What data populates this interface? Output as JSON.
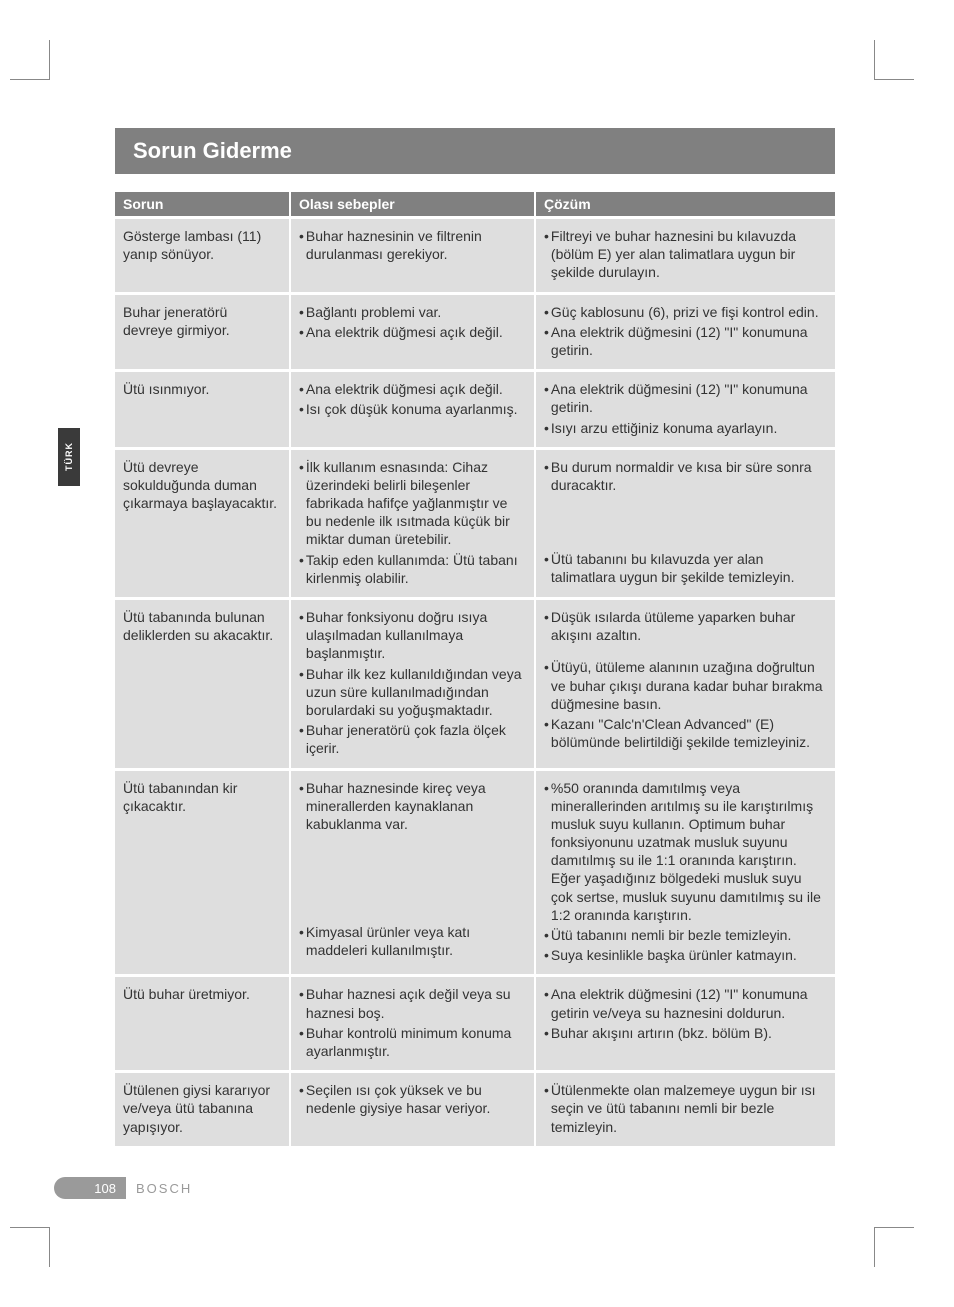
{
  "language_tab": "TÜRK",
  "section_title": "Sorun Giderme",
  "columns": {
    "problem": "Sorun",
    "cause": "Olası sebepler",
    "solution": "Çözüm"
  },
  "rows": [
    {
      "problem": "Gösterge lambası (11) yanıp sönüyor.",
      "causes": [
        "Buhar haznesinin ve filtrenin durulanması gerekiyor."
      ],
      "solutions": [
        "Filtreyi ve buhar haznesini bu kılavuzda (bölüm E) yer alan talimatlara uygun bir şekilde durulayın."
      ]
    },
    {
      "problem": "Buhar jeneratörü devreye girmiyor.",
      "causes": [
        "Bağlantı problemi var.",
        "Ana elektrik düğmesi açık değil."
      ],
      "solutions": [
        "Güç kablosunu (6), prizi ve fişi kontrol edin.",
        "Ana elektrik düğmesini (12) \"I\" konumuna getirin."
      ]
    },
    {
      "problem": "Ütü ısınmıyor.",
      "causes": [
        "Ana elektrik düğmesi açık değil.",
        "Isı çok düşük konuma ayarlanmış."
      ],
      "solutions": [
        "Ana elektrik düğmesini (12) \"I\" konumuna getirin.",
        "Isıyı arzu ettiğiniz konuma ayarlayın."
      ]
    },
    {
      "problem": "Ütü devreye sokulduğunda duman çıkarmaya başlayacaktır.",
      "causes": [
        "İlk kullanım esnasında: Cihaz üzerindeki belirli bileşenler fabrikada hafifçe yağlanmıştır ve bu nedenle ilk ısıtmada küçük bir miktar duman üretebilir.",
        "Takip eden kullanımda: Ütü tabanı kirlenmiş olabilir."
      ],
      "solutions": [
        "Bu durum normaldir ve kısa bir süre sonra duracaktır.",
        "Ütü tabanını bu kılavuzda yer alan talimatlara uygun bir şekilde temizleyin."
      ],
      "solution_gap_after_first": true
    },
    {
      "problem": "Ütü tabanında bulunan deliklerden su akacaktır.",
      "causes": [
        "Buhar fonksiyonu doğru ısıya ulaşılmadan kullanılmaya başlanmıştır.",
        "Buhar ilk kez kullanıldığından veya uzun süre kullanılmadığından borulardaki su yoğuşmaktadır.",
        "Buhar jeneratörü çok fazla ölçek içerir."
      ],
      "solutions": [
        "Düşük ısılarda ütüleme yaparken buhar akışını azaltın.",
        "Ütüyü, ütüleme alanının uzağına doğrultun ve buhar çıkışı durana kadar buhar bırakma düğmesine basın.",
        "Kazanı \"Calc'n'Clean Advanced\" (E) bölümünde belirtildiği şekilde temizleyiniz."
      ],
      "solution_gap_after_first": true
    },
    {
      "problem": "Ütü tabanından kir çıkacaktır.",
      "causes": [
        "Buhar haznesinde kireç veya minerallerden kaynaklanan kabuklanma var.",
        "Kimyasal ürünler veya katı maddeleri kullanılmıştır."
      ],
      "solutions": [
        "%50 oranında damıtılmış veya minerallerinden arıtılmış su ile karıştırılmış musluk suyu kullanın. Optimum buhar fonksiyonunu uzatmak musluk suyunu damıtılmış su ile 1:1 oranında karıştırın. Eğer yaşadığınız bölgedeki musluk suyu çok sertse, musluk suyunu damıtılmış su ile 1:2 oranında karıştırın.",
        "Ütü tabanını nemli bir bezle temizleyin.",
        "Suya kesinlikle başka ürünler katmayın."
      ],
      "cause_gap_after_first": true
    },
    {
      "problem": "Ütü buhar üretmiyor.",
      "causes": [
        "Buhar haznesi açık değil veya su haznesi boş.",
        "Buhar kontrolü minimum konuma ayarlanmıştır."
      ],
      "solutions": [
        "Ana elektrik düğmesini (12) \"I\" konumuna getirin ve/veya su haznesini doldurun.",
        "Buhar akışını artırın (bkz. bölüm B)."
      ]
    },
    {
      "problem": "Ütülenen giysi kararıyor ve/veya ütü tabanına yapışıyor.",
      "causes": [
        "Seçilen ısı çok yüksek ve bu nedenle giysiye hasar veriyor."
      ],
      "solutions": [
        "Ütülenmekte olan malzemeye uygun bir ısı seçin ve ütü tabanını nemli bir bezle temizleyin."
      ]
    }
  ],
  "footer": {
    "page": "108",
    "brand": "BOSCH"
  }
}
